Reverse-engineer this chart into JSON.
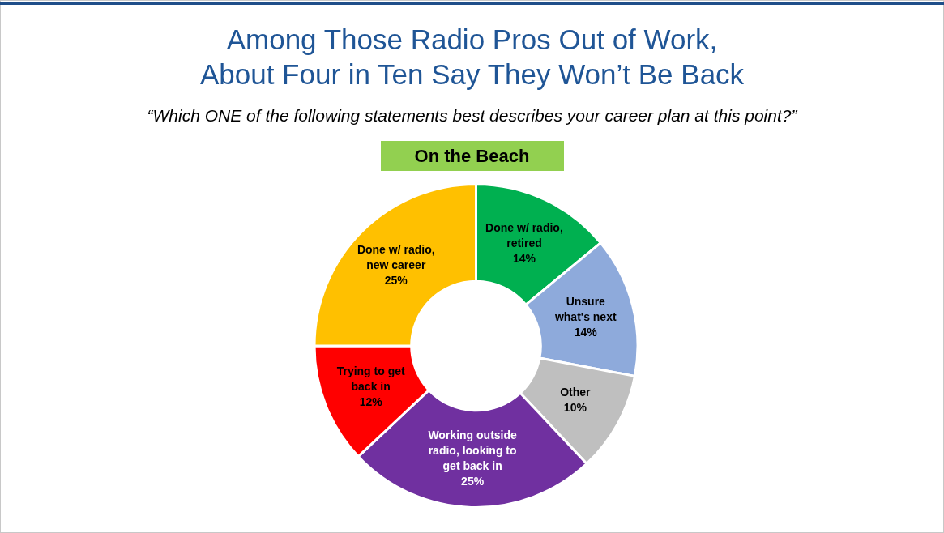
{
  "chart_data": {
    "type": "donut",
    "title": "Among Those Radio Pros Out of Work,\nAbout Four in Ten Say They Won’t Be Back",
    "subtitle": "“Which ONE of the following statements best describes your career plan at this point?”",
    "annotations": [
      "On the Beach"
    ],
    "categories": [
      "Done w/ radio, retired",
      "Unsure what's next",
      "Other",
      "Working outside radio, looking to get back in",
      "Trying to get back in",
      "Done w/ radio, new career"
    ],
    "values": [
      14,
      14,
      10,
      25,
      12,
      25
    ],
    "colors": [
      "#00b050",
      "#8eaadb",
      "#bfbfbf",
      "#7030a0",
      "#ff0000",
      "#ffc000"
    ],
    "value_labels": [
      "14%",
      "14%",
      "10%",
      "25%",
      "12%",
      "25%"
    ]
  }
}
